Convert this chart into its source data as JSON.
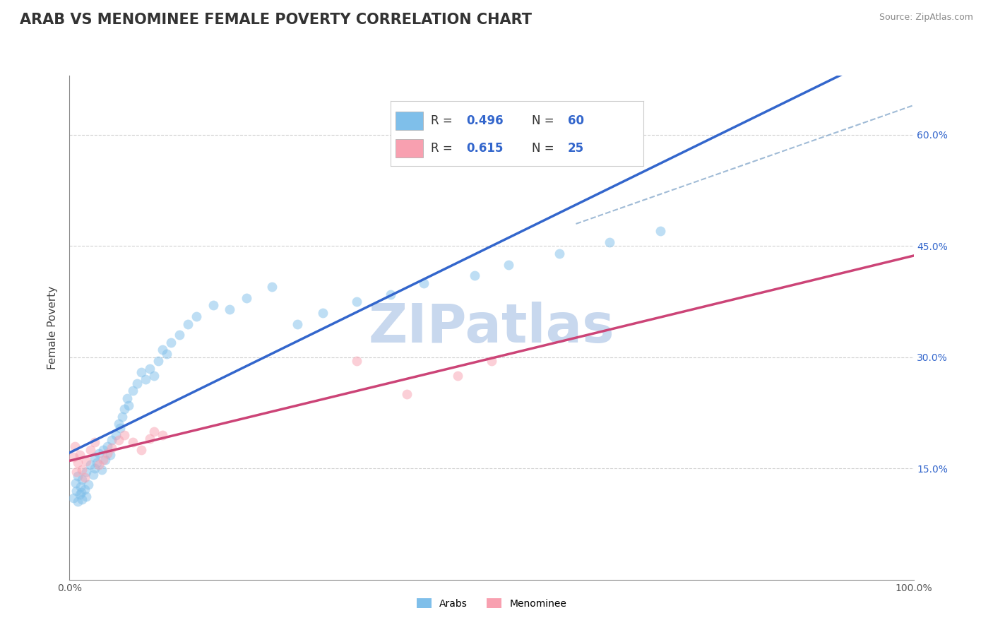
{
  "title": "ARAB VS MENOMINEE FEMALE POVERTY CORRELATION CHART",
  "source": "Source: ZipAtlas.com",
  "ylabel": "Female Poverty",
  "xlim": [
    0,
    1.0
  ],
  "ylim": [
    0.0,
    0.68
  ],
  "xticks": [
    0.0,
    0.1,
    0.2,
    0.3,
    0.4,
    0.5,
    0.6,
    0.7,
    0.8,
    0.9,
    1.0
  ],
  "xticklabels": [
    "0.0%",
    "",
    "",
    "",
    "",
    "",
    "",
    "",
    "",
    "",
    "100.0%"
  ],
  "ytick_positions": [
    0.15,
    0.3,
    0.45,
    0.6
  ],
  "ytick_labels": [
    "15.0%",
    "30.0%",
    "45.0%",
    "60.0%"
  ],
  "R_arab": 0.496,
  "N_arab": 60,
  "R_menominee": 0.615,
  "N_menominee": 25,
  "arab_color": "#7fbfea",
  "menominee_color": "#f8a0b0",
  "arab_line_color": "#3366cc",
  "menominee_line_color": "#cc4477",
  "diagonal_color": "#88aacc",
  "background_color": "#ffffff",
  "grid_color": "#cccccc",
  "watermark": "ZIPatlas",
  "watermark_color": "#c8d8ee",
  "arab_x": [
    0.005,
    0.007,
    0.008,
    0.01,
    0.01,
    0.012,
    0.013,
    0.014,
    0.015,
    0.015,
    0.018,
    0.02,
    0.02,
    0.022,
    0.025,
    0.028,
    0.03,
    0.03,
    0.032,
    0.035,
    0.038,
    0.04,
    0.042,
    0.045,
    0.048,
    0.05,
    0.055,
    0.058,
    0.06,
    0.062,
    0.065,
    0.068,
    0.07,
    0.075,
    0.08,
    0.085,
    0.09,
    0.095,
    0.1,
    0.105,
    0.11,
    0.115,
    0.12,
    0.13,
    0.14,
    0.15,
    0.17,
    0.19,
    0.21,
    0.24,
    0.27,
    0.3,
    0.34,
    0.38,
    0.42,
    0.48,
    0.52,
    0.58,
    0.64,
    0.7
  ],
  "arab_y": [
    0.11,
    0.13,
    0.12,
    0.14,
    0.105,
    0.115,
    0.125,
    0.118,
    0.108,
    0.135,
    0.122,
    0.145,
    0.112,
    0.128,
    0.155,
    0.142,
    0.15,
    0.165,
    0.158,
    0.17,
    0.148,
    0.175,
    0.162,
    0.18,
    0.168,
    0.188,
    0.195,
    0.21,
    0.205,
    0.22,
    0.23,
    0.245,
    0.235,
    0.255,
    0.265,
    0.28,
    0.27,
    0.285,
    0.275,
    0.295,
    0.31,
    0.305,
    0.32,
    0.33,
    0.345,
    0.355,
    0.37,
    0.365,
    0.38,
    0.395,
    0.345,
    0.36,
    0.375,
    0.385,
    0.4,
    0.41,
    0.425,
    0.44,
    0.455,
    0.47
  ],
  "menominee_x": [
    0.005,
    0.006,
    0.008,
    0.01,
    0.012,
    0.015,
    0.018,
    0.02,
    0.025,
    0.03,
    0.035,
    0.04,
    0.045,
    0.05,
    0.058,
    0.065,
    0.075,
    0.085,
    0.095,
    0.1,
    0.11,
    0.34,
    0.4,
    0.46,
    0.5
  ],
  "menominee_y": [
    0.165,
    0.18,
    0.145,
    0.158,
    0.168,
    0.148,
    0.138,
    0.16,
    0.175,
    0.185,
    0.155,
    0.162,
    0.17,
    0.178,
    0.188,
    0.195,
    0.185,
    0.175,
    0.19,
    0.2,
    0.195,
    0.295,
    0.25,
    0.275,
    0.295
  ],
  "marker_size": 100,
  "marker_alpha": 0.5,
  "title_fontsize": 15,
  "source_fontsize": 9,
  "axis_label_fontsize": 11,
  "tick_fontsize": 10,
  "legend_fontsize": 12
}
